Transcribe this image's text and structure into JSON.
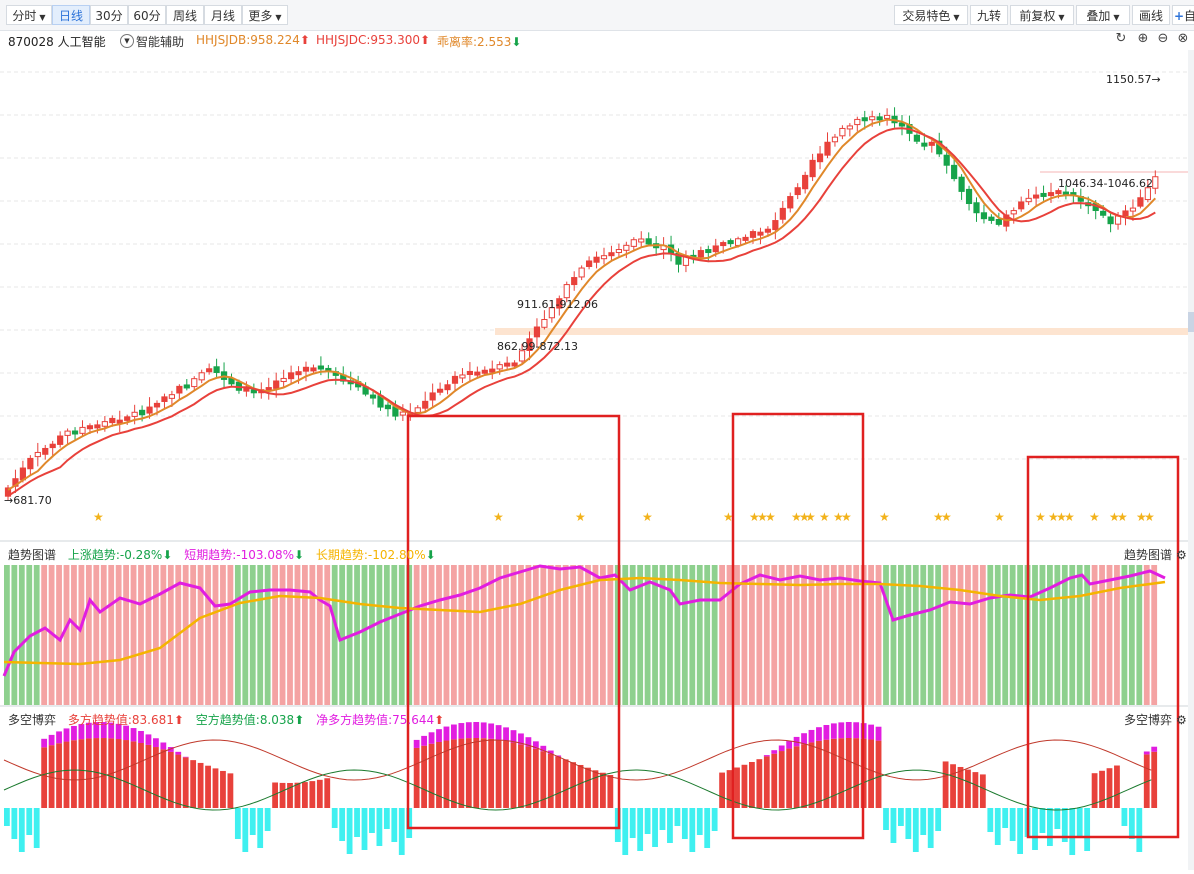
{
  "toolbar": {
    "left_tabs": [
      {
        "label": "分时",
        "dropdown": true,
        "active": false
      },
      {
        "label": "日线",
        "dropdown": false,
        "active": true
      },
      {
        "label": "30分",
        "dropdown": false,
        "active": false
      },
      {
        "label": "60分",
        "dropdown": false,
        "active": false
      },
      {
        "label": "周线",
        "dropdown": false,
        "active": false
      },
      {
        "label": "月线",
        "dropdown": false,
        "active": false
      },
      {
        "label": "更多",
        "dropdown": true,
        "active": false
      }
    ],
    "right_tabs": [
      {
        "label": "交易特色",
        "dropdown": true
      },
      {
        "label": "九转",
        "dropdown": false
      },
      {
        "label": "前复权",
        "dropdown": true
      },
      {
        "label": "叠加",
        "dropdown": true
      },
      {
        "label": "画线",
        "dropdown": false
      },
      {
        "label": "自",
        "dropdown": false
      }
    ]
  },
  "info": {
    "stock": "870028 人工智能",
    "assist": "智能辅助",
    "hhjsjdb": "HHJSJDB:958.224",
    "hhjsjdc": "HHJSJDC:953.300",
    "deviation": "乖离率:2.553"
  },
  "price_annotations": {
    "high": "1150.57→",
    "low": "681.70",
    "range1": "862.99-872.13",
    "range2": "911.61-912.06",
    "range3": "1046.34-1046.62"
  },
  "trend_panel": {
    "title": "趋势图谱",
    "up": "上涨趋势:-0.28%",
    "short": "短期趋势:-103.08%",
    "long": "长期趋势:-102.80%",
    "right_title": "趋势图谱"
  },
  "game_panel": {
    "title": "多空博弈",
    "bull": "多方趋势值:83.681",
    "bear": "空方趋势值:8.038",
    "net": "净多方趋势值:75.644",
    "right_title": "多空博弈"
  },
  "colors": {
    "up": "#e8413b",
    "down": "#16a34a",
    "up_hollow": "#e8413b",
    "ma_fast": "#e0882a",
    "ma_slow": "#e8413b",
    "star": "#f2b21a",
    "trend_pink": "#f4a3a3",
    "trend_green": "#8ed08e",
    "magenta": "#e11de0",
    "orange_line": "#f5b400",
    "bull_bar": "#e8413b",
    "bull_top": "#e11de0",
    "bear_bar": "#3ff0f0",
    "highlight_box": "#e02020",
    "resistance_band": "#fde4d0"
  }
}
